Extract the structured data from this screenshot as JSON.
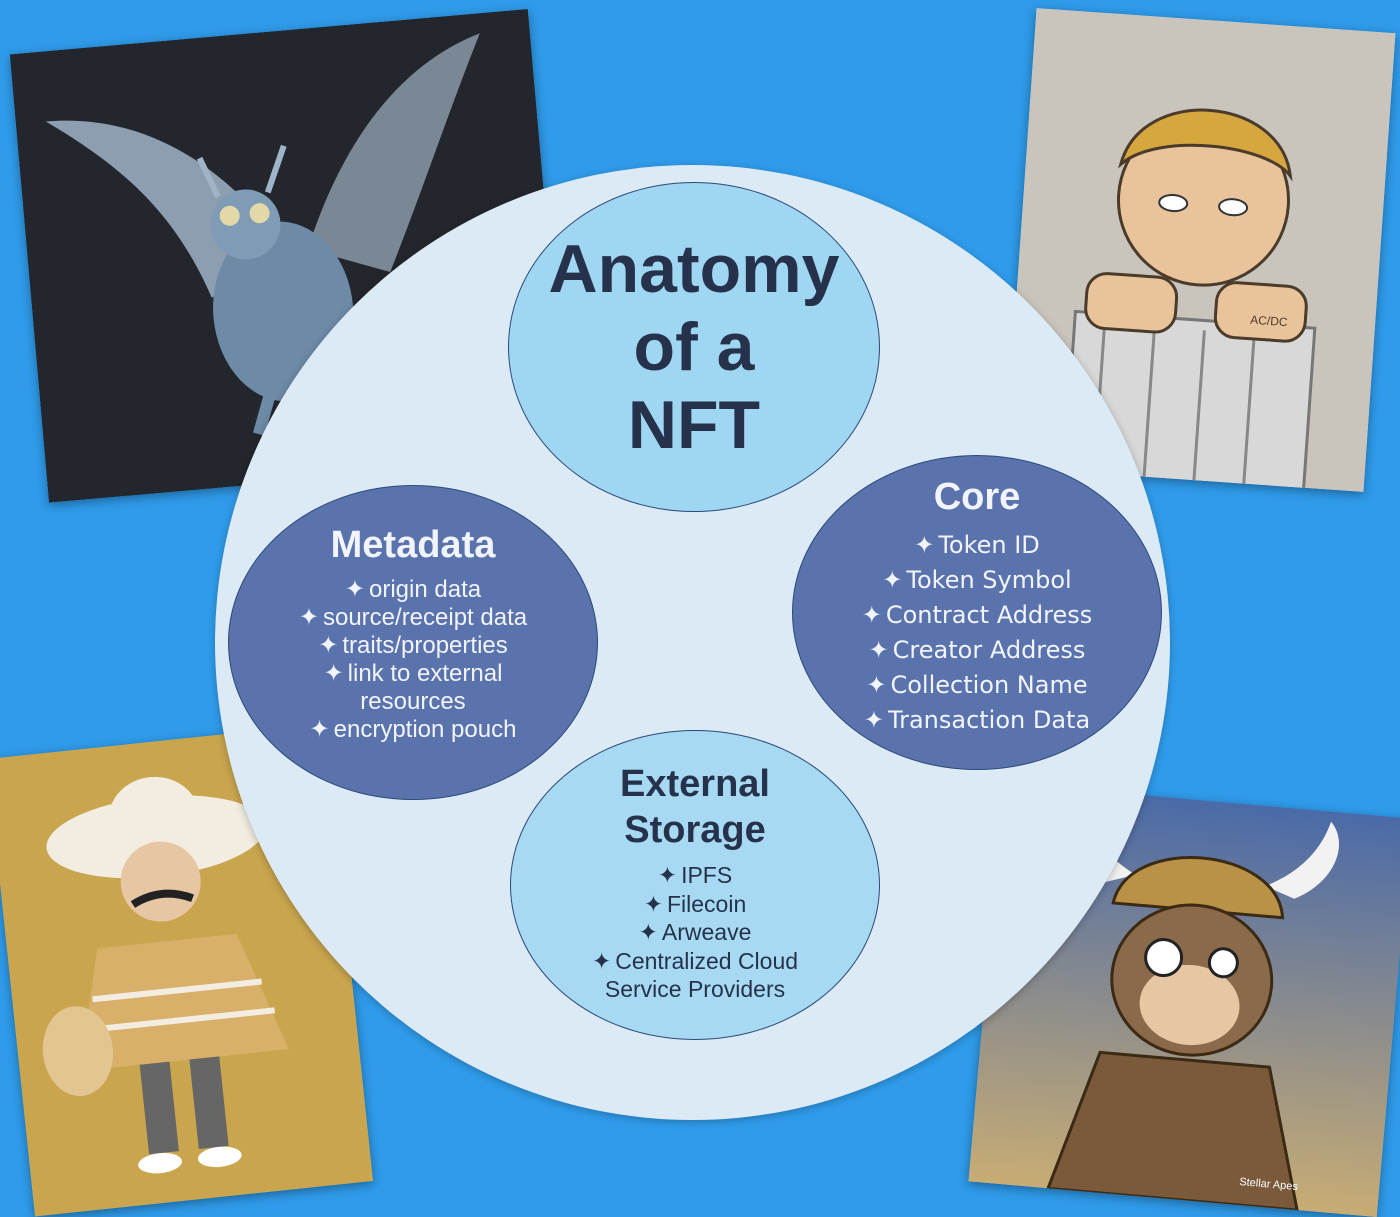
{
  "title": "Anatomy of a NFT",
  "title_lines": [
    "Anatomy",
    "of a",
    "NFT"
  ],
  "bullet": "✦",
  "core": {
    "heading": "Core",
    "items": [
      "Token ID",
      "Token Symbol",
      "Contract Address",
      "Creator Address",
      "Collection Name",
      "Transaction Data"
    ]
  },
  "metadata": {
    "heading": "Metadata",
    "items": [
      "origin data",
      "source/receipt data",
      "traits/properties",
      "link to external",
      "resources",
      "encryption pouch"
    ]
  },
  "storage": {
    "heading_lines": [
      "External",
      "Storage"
    ],
    "items": [
      "IPFS",
      "Filecoin",
      "Arweave",
      "Centralized Cloud",
      "Service Providers"
    ]
  },
  "colors": {
    "background": "#2f9bea",
    "big_circle": "#dceaf6",
    "title_circle": "#9fd6f2",
    "core_circle": "#5a73ad",
    "metadata_circle": "#5a73ad",
    "storage_circle": "#a7daf2",
    "dark_text": "#26324c"
  },
  "images": [
    {
      "name": "dragon-nft-image"
    },
    {
      "name": "cartoon-boy-nft-image",
      "label": "AC/DC"
    },
    {
      "name": "mariachi-nft-image"
    },
    {
      "name": "viking-monkey-nft-image",
      "label": "Stellar Apes"
    }
  ]
}
